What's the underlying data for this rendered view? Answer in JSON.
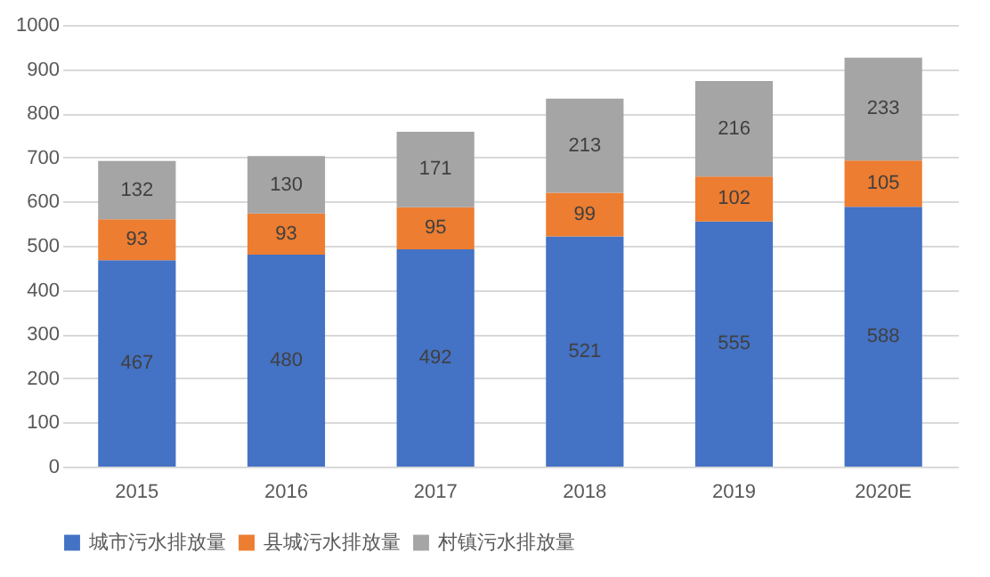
{
  "chart_data": {
    "type": "bar",
    "stacked": true,
    "categories": [
      "2015",
      "2016",
      "2017",
      "2018",
      "2019",
      "2020E"
    ],
    "series": [
      {
        "name": "城市污水排放量",
        "color": "#4472c4",
        "values": [
          467,
          480,
          492,
          521,
          555,
          588
        ]
      },
      {
        "name": "县城污水排放量",
        "color": "#ed7d31",
        "values": [
          93,
          93,
          95,
          99,
          102,
          105
        ]
      },
      {
        "name": "村镇污水排放量",
        "color": "#a5a5a5",
        "values": [
          132,
          130,
          171,
          213,
          216,
          233
        ]
      }
    ],
    "ylim": [
      0,
      1000
    ],
    "yticks": [
      0,
      100,
      200,
      300,
      400,
      500,
      600,
      700,
      800,
      900,
      1000
    ],
    "grid": "y",
    "legend": "bottom",
    "data_labels": true
  }
}
